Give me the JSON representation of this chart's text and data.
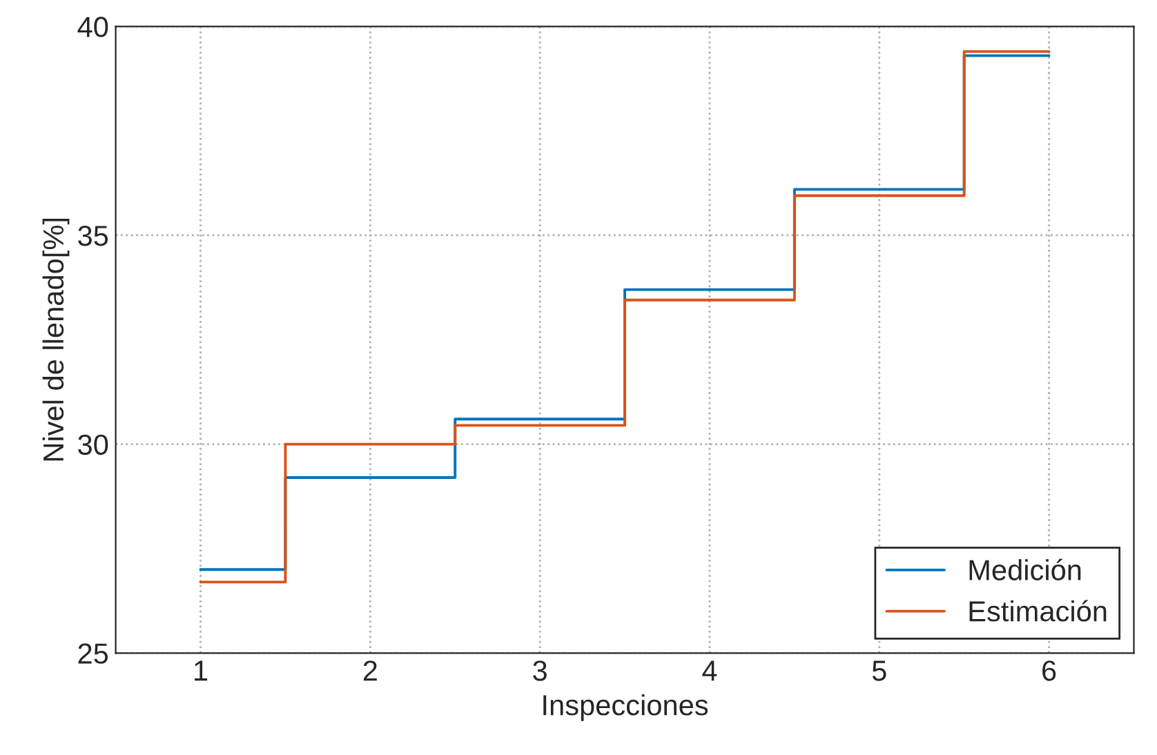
{
  "chart_data": {
    "type": "step",
    "xlabel": "Inspecciones",
    "ylabel": "Nivel de llenado[%]",
    "x": [
      1,
      2,
      3,
      4,
      5,
      6
    ],
    "series": [
      {
        "name": "Medición",
        "color": "#0072bd",
        "values": [
          27.0,
          29.2,
          30.6,
          33.7,
          36.1,
          39.3
        ]
      },
      {
        "name": "Estimación",
        "color": "#d95319",
        "values": [
          26.7,
          30.0,
          30.45,
          33.45,
          35.95,
          39.4
        ]
      }
    ],
    "xlim": [
      0.5,
      6.5
    ],
    "xticks": [
      1,
      2,
      3,
      4,
      5,
      6
    ],
    "ylim": [
      25,
      40
    ],
    "yticks": [
      25,
      30,
      35,
      40
    ],
    "grid": true,
    "legend": "bottom right"
  }
}
